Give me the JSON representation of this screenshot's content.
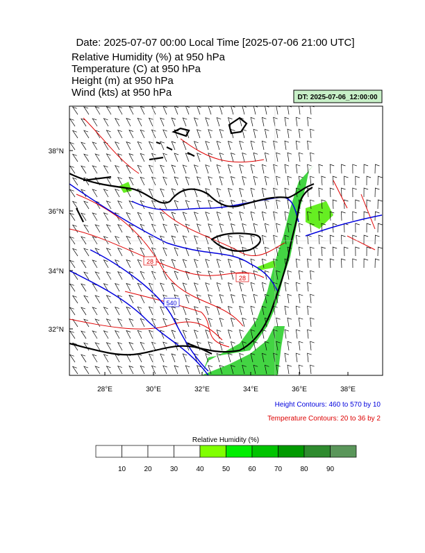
{
  "header": {
    "title": "Date: 2025-07-07  00:00 Local Time [2025-07-06  21:00 UTC]",
    "fields": [
      "Relative Humidity   (%)    at   950 hPa",
      "Temperature   (C)     at   950 hPa",
      "Height   (m)     at   950 hPa",
      "Wind   (kts)     at   950 hPa"
    ],
    "dt_badge": "DT: 2025-07-06_12:00:00"
  },
  "map": {
    "lat_labels": [
      "38°N",
      "36°N",
      "34°N",
      "32°N"
    ],
    "lon_labels": [
      "28°E",
      "30°E",
      "32°E",
      "34°E",
      "36°E",
      "38°E"
    ],
    "contour_labels": [
      "28",
      "28",
      "540"
    ]
  },
  "notes": [
    "Height Contours: 460 to 570 by 10",
    "Temperature Contours: 20 to 36 by 2"
  ],
  "colorbar": {
    "title": "Relative Humidity  (%)",
    "labels": [
      "10",
      "20",
      "30",
      "40",
      "50",
      "60",
      "70",
      "80",
      "90"
    ],
    "colors": [
      "#ffffff",
      "#ffffff",
      "#ffffff",
      "#ffffff",
      "#80ff00",
      "#00ee00",
      "#00c400",
      "#009a00",
      "#2e8b2e",
      "#5a965a"
    ]
  }
}
